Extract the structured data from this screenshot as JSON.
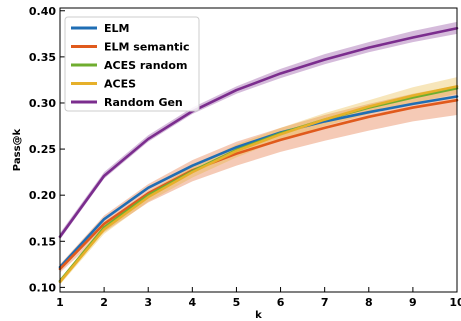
{
  "chart_data": {
    "type": "line",
    "xlabel": "k",
    "ylabel": "Pass@k",
    "x": [
      1,
      2,
      3,
      4,
      5,
      6,
      7,
      8,
      9,
      10
    ],
    "xlim": [
      1,
      10
    ],
    "ylim": [
      0.095,
      0.403
    ],
    "xticks": [
      "1",
      "2",
      "3",
      "4",
      "5",
      "6",
      "7",
      "8",
      "9",
      "10"
    ],
    "yticks": [
      0.1,
      0.15,
      0.2,
      0.25,
      0.3,
      0.35,
      0.4
    ],
    "ytick_labels": [
      "0.10",
      "0.15",
      "0.20",
      "0.25",
      "0.30",
      "0.35",
      "0.40"
    ],
    "legend_position": "top-left",
    "grid": false,
    "series": [
      {
        "name": "ELM",
        "color": "#1f6eb4",
        "values": [
          0.122,
          0.174,
          0.208,
          0.232,
          0.252,
          0.268,
          0.28,
          0.29,
          0.299,
          0.307
        ],
        "band": null
      },
      {
        "name": "ELM semantic",
        "color": "#e05a1c",
        "values": [
          0.12,
          0.169,
          0.202,
          0.227,
          0.245,
          0.26,
          0.273,
          0.285,
          0.295,
          0.303
        ],
        "band": {
          "low": [
            0.116,
            0.16,
            0.192,
            0.215,
            0.232,
            0.247,
            0.259,
            0.27,
            0.28,
            0.287
          ],
          "high": [
            0.125,
            0.178,
            0.212,
            0.238,
            0.258,
            0.273,
            0.287,
            0.299,
            0.31,
            0.319
          ]
        }
      },
      {
        "name": "ACES random",
        "color": "#6fad2f",
        "values": [
          0.107,
          0.165,
          0.2,
          0.226,
          0.249,
          0.267,
          0.282,
          0.295,
          0.306,
          0.316
        ],
        "band": null
      },
      {
        "name": "ACES",
        "color": "#e6b02a",
        "values": [
          0.106,
          0.163,
          0.198,
          0.225,
          0.248,
          0.266,
          0.282,
          0.296,
          0.308,
          0.318
        ],
        "band": {
          "low": [
            0.103,
            0.158,
            0.193,
            0.219,
            0.241,
            0.26,
            0.275,
            0.288,
            0.3,
            0.31
          ],
          "high": [
            0.109,
            0.168,
            0.204,
            0.231,
            0.255,
            0.273,
            0.289,
            0.303,
            0.317,
            0.328
          ]
        }
      },
      {
        "name": "Random Gen",
        "color": "#7b2d8e",
        "values": [
          0.155,
          0.221,
          0.261,
          0.291,
          0.314,
          0.332,
          0.347,
          0.36,
          0.371,
          0.381
        ],
        "band": {
          "low": [
            0.152,
            0.218,
            0.258,
            0.288,
            0.31,
            0.327,
            0.342,
            0.355,
            0.366,
            0.375
          ],
          "high": [
            0.159,
            0.225,
            0.265,
            0.295,
            0.318,
            0.337,
            0.353,
            0.366,
            0.378,
            0.388
          ]
        }
      }
    ]
  }
}
